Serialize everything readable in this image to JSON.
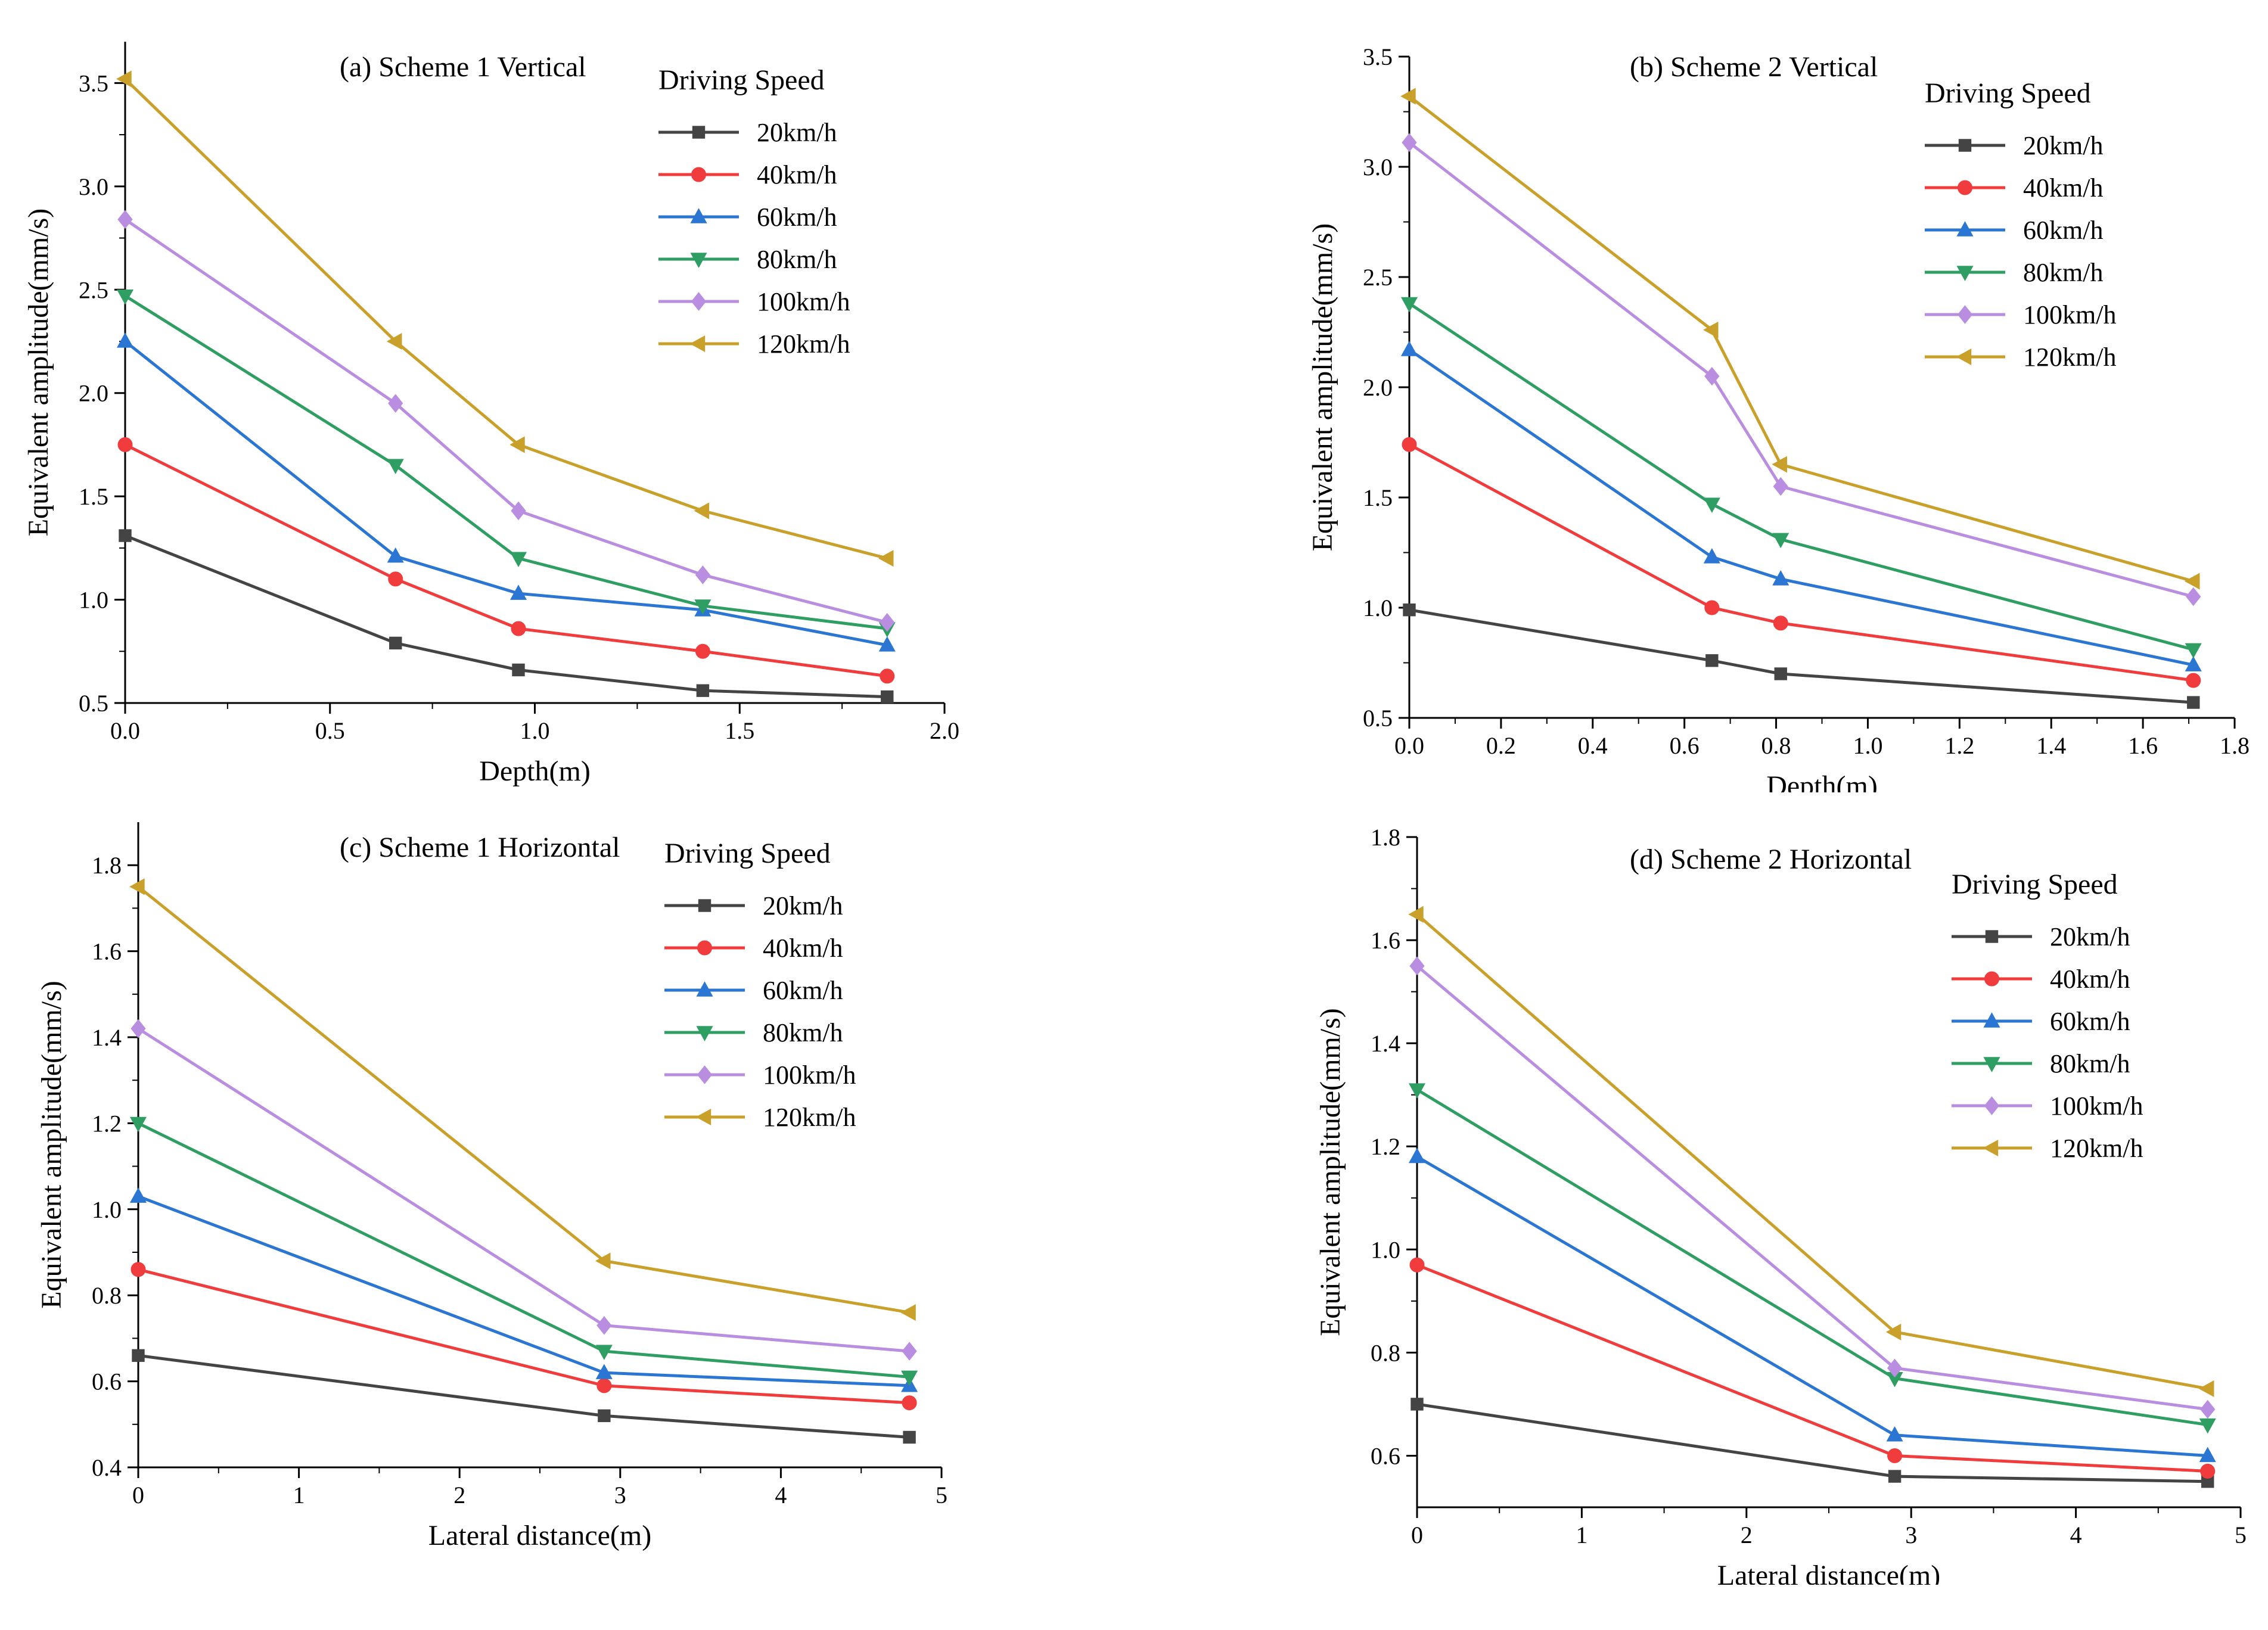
{
  "legend_title": "Driving Speed",
  "chart_data": [
    {
      "id": "a",
      "type": "line",
      "title": "(a) Scheme 1 Vertical",
      "xlabel": "Depth(m)",
      "ylabel": "Equivalent amplitude(mm/s)",
      "xlim": [
        0,
        2.0
      ],
      "ylim": [
        0.5,
        3.7
      ],
      "xticks": [
        "0.0",
        "0.5",
        "1.0",
        "1.5",
        "2.0"
      ],
      "yticks": [
        "0.5",
        "1.0",
        "1.5",
        "2.0",
        "2.5",
        "3.0",
        "3.5"
      ],
      "x": [
        0,
        0.66,
        0.96,
        1.41,
        1.86
      ],
      "series": [
        {
          "name": "20km/h",
          "color": "#444444",
          "marker": "square",
          "values": [
            1.31,
            0.79,
            0.66,
            0.56,
            0.53
          ]
        },
        {
          "name": "40km/h",
          "color": "#f03c3c",
          "marker": "circle",
          "values": [
            1.75,
            1.1,
            0.86,
            0.75,
            0.63
          ]
        },
        {
          "name": "60km/h",
          "color": "#2a76d2",
          "marker": "triangle-up",
          "values": [
            2.25,
            1.21,
            1.03,
            0.95,
            0.78
          ]
        },
        {
          "name": "80km/h",
          "color": "#2f9e62",
          "marker": "triangle-down",
          "values": [
            2.47,
            1.65,
            1.2,
            0.97,
            0.86
          ]
        },
        {
          "name": "100km/h",
          "color": "#b98ee0",
          "marker": "diamond",
          "values": [
            2.84,
            1.95,
            1.43,
            1.12,
            0.89
          ]
        },
        {
          "name": "120km/h",
          "color": "#c9a02a",
          "marker": "triangle-left",
          "values": [
            3.52,
            2.25,
            1.75,
            1.43,
            1.2
          ]
        }
      ]
    },
    {
      "id": "b",
      "type": "line",
      "title": "(b) Scheme 2 Vertical",
      "xlabel": "Depth(m)",
      "ylabel": "Equivalent amplitude(mm/s)",
      "xlim": [
        0,
        1.8
      ],
      "ylim": [
        0.5,
        3.5
      ],
      "xticks": [
        "0.0",
        "0.2",
        "0.4",
        "0.6",
        "0.8",
        "1.0",
        "1.2",
        "1.4",
        "1.6",
        "1.8"
      ],
      "yticks": [
        "0.5",
        "1.0",
        "1.5",
        "2.0",
        "2.5",
        "3.0",
        "3.5"
      ],
      "x": [
        0,
        0.66,
        0.81,
        1.71
      ],
      "series": [
        {
          "name": "20km/h",
          "color": "#444444",
          "marker": "square",
          "values": [
            0.99,
            0.76,
            0.7,
            0.57
          ]
        },
        {
          "name": "40km/h",
          "color": "#f03c3c",
          "marker": "circle",
          "values": [
            1.74,
            1.0,
            0.93,
            0.67
          ]
        },
        {
          "name": "60km/h",
          "color": "#2a76d2",
          "marker": "triangle-up",
          "values": [
            2.17,
            1.23,
            1.13,
            0.74
          ]
        },
        {
          "name": "80km/h",
          "color": "#2f9e62",
          "marker": "triangle-down",
          "values": [
            2.38,
            1.47,
            1.31,
            0.81
          ]
        },
        {
          "name": "100km/h",
          "color": "#b98ee0",
          "marker": "diamond",
          "values": [
            3.11,
            2.05,
            1.55,
            1.05
          ]
        },
        {
          "name": "120km/h",
          "color": "#c9a02a",
          "marker": "triangle-left",
          "values": [
            3.32,
            2.26,
            1.65,
            1.12
          ]
        }
      ]
    },
    {
      "id": "c",
      "type": "line",
      "title": "(c) Scheme 1 Horizontal",
      "xlabel": "Lateral distance(m)",
      "ylabel": "Equivalent amplitude(mm/s)",
      "xlim": [
        0,
        5
      ],
      "ylim": [
        0.4,
        1.9
      ],
      "xticks": [
        "0",
        "1",
        "2",
        "3",
        "4",
        "5"
      ],
      "yticks": [
        "0.4",
        "0.6",
        "0.8",
        "1.0",
        "1.2",
        "1.4",
        "1.6",
        "1.8"
      ],
      "x": [
        0,
        2.9,
        4.8
      ],
      "series": [
        {
          "name": "20km/h",
          "color": "#444444",
          "marker": "square",
          "values": [
            0.66,
            0.52,
            0.47
          ]
        },
        {
          "name": "40km/h",
          "color": "#f03c3c",
          "marker": "circle",
          "values": [
            0.86,
            0.59,
            0.55
          ]
        },
        {
          "name": "60km/h",
          "color": "#2a76d2",
          "marker": "triangle-up",
          "values": [
            1.03,
            0.62,
            0.59
          ]
        },
        {
          "name": "80km/h",
          "color": "#2f9e62",
          "marker": "triangle-down",
          "values": [
            1.2,
            0.67,
            0.61
          ]
        },
        {
          "name": "100km/h",
          "color": "#b98ee0",
          "marker": "diamond",
          "values": [
            1.42,
            0.73,
            0.67
          ]
        },
        {
          "name": "120km/h",
          "color": "#c9a02a",
          "marker": "triangle-left",
          "values": [
            1.75,
            0.88,
            0.76
          ]
        }
      ]
    },
    {
      "id": "d",
      "type": "line",
      "title": "(d) Scheme 2 Horizontal",
      "xlabel": "Lateral distance(m)",
      "ylabel": "Equivalent amplitude(mm/s)",
      "xlim": [
        0,
        5
      ],
      "ylim": [
        0.5,
        1.8
      ],
      "xticks": [
        "0",
        "1",
        "2",
        "3",
        "4",
        "5"
      ],
      "yticks": [
        "0.6",
        "0.8",
        "1.0",
        "1.2",
        "1.4",
        "1.6",
        "1.8"
      ],
      "x": [
        0,
        2.9,
        4.8
      ],
      "series": [
        {
          "name": "20km/h",
          "color": "#444444",
          "marker": "square",
          "values": [
            0.7,
            0.56,
            0.55
          ]
        },
        {
          "name": "40km/h",
          "color": "#f03c3c",
          "marker": "circle",
          "values": [
            0.97,
            0.6,
            0.57
          ]
        },
        {
          "name": "60km/h",
          "color": "#2a76d2",
          "marker": "triangle-up",
          "values": [
            1.18,
            0.64,
            0.6
          ]
        },
        {
          "name": "80km/h",
          "color": "#2f9e62",
          "marker": "triangle-down",
          "values": [
            1.31,
            0.75,
            0.66
          ]
        },
        {
          "name": "100km/h",
          "color": "#b98ee0",
          "marker": "diamond",
          "values": [
            1.55,
            0.77,
            0.69
          ]
        },
        {
          "name": "120km/h",
          "color": "#c9a02a",
          "marker": "triangle-left",
          "values": [
            1.65,
            0.84,
            0.73
          ]
        }
      ]
    }
  ]
}
